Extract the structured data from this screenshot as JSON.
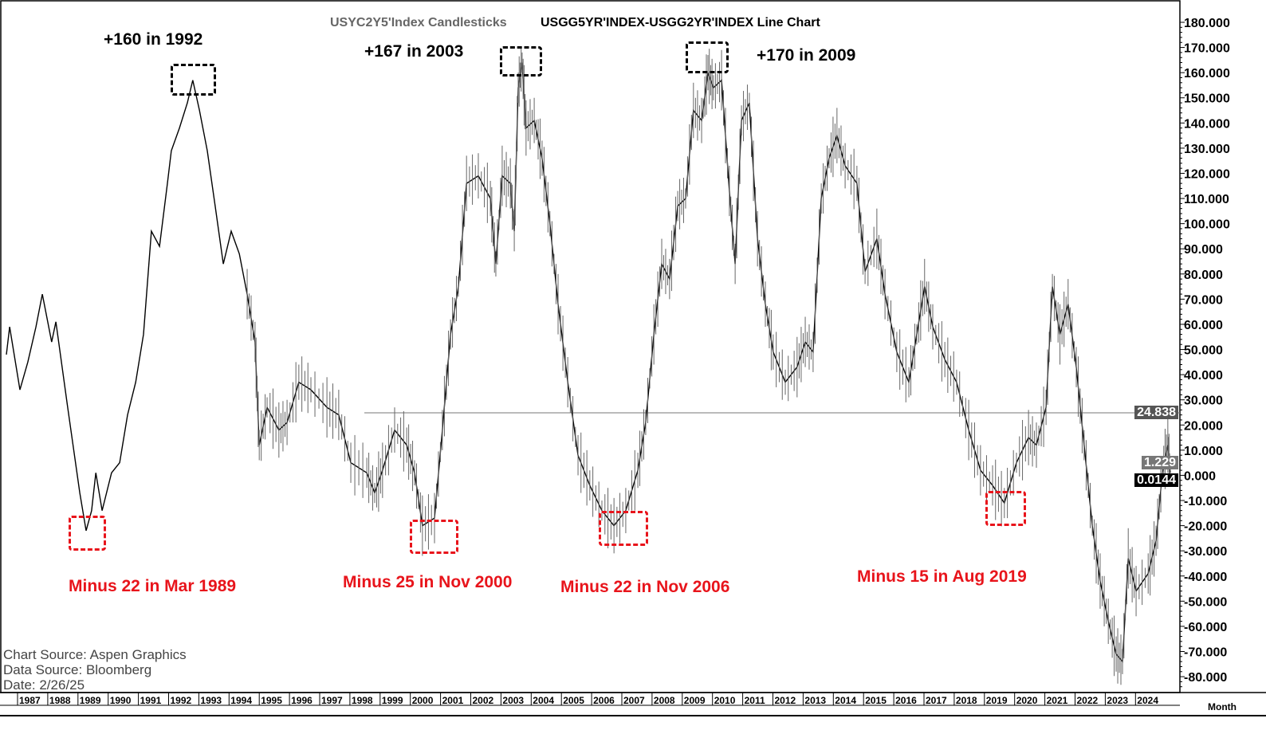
{
  "titles": {
    "left": "USYC2Y5'Index  Candlesticks",
    "right": "USGG5YR'INDEX-USGG2YR'INDEX  Line  Chart"
  },
  "annotations": {
    "peak_1992": "+160 in 1992",
    "peak_2003": "+167 in 2003",
    "peak_2009": "+170 in 2009",
    "trough_1989": "Minus 22 in Mar 1989",
    "trough_2000": "Minus 25 in Nov 2000",
    "trough_2006": "Minus 22 in Nov 2006",
    "trough_2019": "Minus 15 in Aug 2019"
  },
  "source": {
    "chart": "Chart  Source:  Aspen  Graphics",
    "data": "Data  Source:  Bloomberg",
    "date": "Date:    2/26/25"
  },
  "badges": {
    "ref_line": "24.838",
    "last": "1.229",
    "current": "0.0144"
  },
  "period": "Month",
  "colors": {
    "annotation_red": "#e8141b",
    "line": "#000000"
  },
  "chart_data": {
    "type": "line",
    "title": "USGG5YR'INDEX-USGG2YR'INDEX",
    "ylim": [
      -85,
      185
    ],
    "yticks": [
      180,
      170,
      160,
      150,
      140,
      130,
      120,
      110,
      100,
      90,
      80,
      70,
      60,
      50,
      40,
      30,
      20,
      10,
      0,
      -10,
      -20,
      -30,
      -40,
      -50,
      -60,
      -70,
      -80
    ],
    "years": [
      "1987",
      "1988",
      "1989",
      "1990",
      "1991",
      "1992",
      "1993",
      "1994",
      "1995",
      "1996",
      "1997",
      "1998",
      "1999",
      "2000",
      "2001",
      "2002",
      "2003",
      "2004",
      "2005",
      "2006",
      "2007",
      "2008",
      "2009",
      "2010",
      "2011",
      "2012",
      "2013",
      "2014",
      "2015",
      "2016",
      "2017",
      "2018",
      "2019",
      "2020",
      "2021",
      "2022",
      "2023",
      "2024"
    ],
    "reference_line": 24.838,
    "x": [
      1986.63,
      1986.74,
      1987.08,
      1987.34,
      1987.61,
      1987.82,
      1988.13,
      1988.27,
      1988.66,
      1989.06,
      1989.27,
      1989.45,
      1989.59,
      1989.8,
      1990.11,
      1990.38,
      1990.64,
      1990.91,
      1991.17,
      1991.43,
      1991.7,
      1991.96,
      1992.09,
      1992.36,
      1992.62,
      1992.8,
      1993.02,
      1993.28,
      1993.54,
      1993.81,
      1994.07,
      1994.34,
      1994.6,
      1994.86,
      1995.0,
      1995.26,
      1995.65,
      1995.92,
      1996.31,
      1996.71,
      1997.24,
      1997.63,
      1998.03,
      1998.56,
      1998.82,
      1999.08,
      1999.48,
      1999.88,
      2000.14,
      2000.4,
      2000.8,
      2001.06,
      2001.33,
      2001.59,
      2001.86,
      2002.25,
      2002.65,
      2002.83,
      2003.04,
      2003.31,
      2003.44,
      2003.57,
      2003.7,
      2003.83,
      2004.1,
      2004.36,
      2004.62,
      2004.89,
      2005.21,
      2005.55,
      2005.94,
      2006.34,
      2006.74,
      2007.13,
      2007.53,
      2007.79,
      2008.06,
      2008.32,
      2008.58,
      2008.85,
      2009.11,
      2009.37,
      2009.64,
      2009.85,
      2010.03,
      2010.3,
      2010.56,
      2010.75,
      2010.96,
      2011.22,
      2011.49,
      2011.75,
      2012.01,
      2012.41,
      2012.8,
      2013.07,
      2013.33,
      2013.6,
      2013.86,
      2014.12,
      2014.39,
      2014.78,
      2015.05,
      2015.44,
      2015.71,
      2016.1,
      2016.5,
      2016.76,
      2017.02,
      2017.29,
      2017.69,
      2018.08,
      2018.48,
      2018.87,
      2019.27,
      2019.66,
      2020.06,
      2020.46,
      2020.72,
      2021.04,
      2021.25,
      2021.5,
      2021.77,
      2022.04,
      2022.3,
      2022.57,
      2022.83,
      2023.1,
      2023.36,
      2023.57,
      2023.76,
      2024.02,
      2024.42,
      2024.68,
      2024.89,
      2025.07,
      2025.15
    ],
    "values": [
      48,
      59,
      34,
      45,
      59,
      72,
      53,
      61,
      27,
      -7,
      -22,
      -14,
      1,
      -14,
      1,
      5,
      24,
      37,
      56,
      97,
      91,
      116,
      129,
      138,
      148,
      157,
      145,
      129,
      107,
      84,
      97,
      88,
      72,
      53,
      12,
      27,
      18,
      21,
      37,
      34,
      27,
      24,
      5,
      1,
      -7,
      2,
      18,
      12,
      1,
      -20,
      -17,
      18,
      56,
      75,
      116,
      119,
      110,
      84,
      119,
      116,
      97,
      154,
      164,
      138,
      141,
      126,
      100,
      68,
      37,
      8,
      -4,
      -14,
      -20,
      -14,
      2,
      21,
      56,
      84,
      78,
      107,
      110,
      145,
      141,
      160,
      154,
      157,
      113,
      84,
      141,
      148,
      94,
      68,
      49,
      37,
      43,
      53,
      49,
      110,
      126,
      135,
      123,
      116,
      81,
      94,
      72,
      49,
      37,
      56,
      75,
      59,
      46,
      37,
      18,
      2,
      -4,
      -11,
      5,
      15,
      12,
      27,
      75,
      56,
      68,
      43,
      12,
      -20,
      -42,
      -58,
      -71,
      -74,
      -33,
      -46,
      -39,
      -26,
      1,
      12,
      1
    ]
  }
}
